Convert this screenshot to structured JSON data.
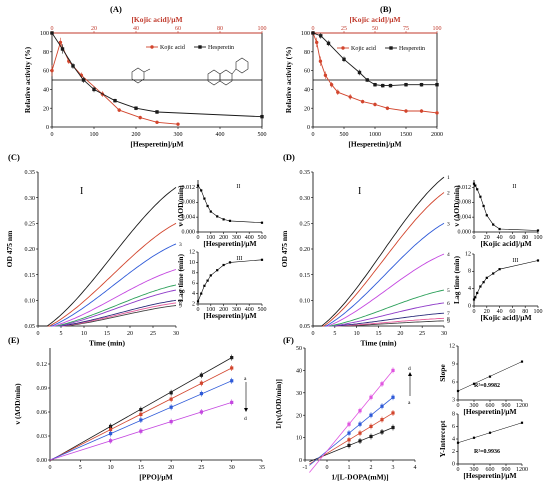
{
  "colors": {
    "kojic": "#d2452d",
    "hesperetin": "#1a1a1a",
    "top_axis": "#c0392b",
    "conc_series": [
      "#1a1a1a",
      "#d2452d",
      "#2e5ad8",
      "#c447e0",
      "#2ca05a",
      "#8e3ac8",
      "#2a2a7a",
      "#e65a9a",
      "#444444"
    ]
  },
  "chart_data": [
    {
      "panel": "(A)",
      "type": "line",
      "xlabel": "[Hesperetin]/μM",
      "x2label": "[Kojic acid]/μM",
      "ylabel": "Relative activity (%)",
      "xlim": [
        0,
        500
      ],
      "x2lim": [
        0,
        100
      ],
      "ylim": [
        0,
        100
      ],
      "xticks": [
        "0",
        "100",
        "200",
        "300",
        "400",
        "500"
      ],
      "x2ticks": [
        "0",
        "20",
        "40",
        "60",
        "80",
        "100"
      ],
      "yticks": [
        "0",
        "20",
        "40",
        "60",
        "80",
        "100"
      ],
      "hline": 50,
      "legend": [
        "Kojic acid",
        "Hesperetin"
      ],
      "series": [
        {
          "name": "Kojic acid",
          "axis": "top",
          "x": [
            0,
            4,
            8,
            14,
            24,
            32,
            42,
            50,
            60
          ],
          "y": [
            60,
            90,
            70,
            55,
            35,
            18,
            10,
            5,
            3
          ],
          "err": [
            6,
            5,
            3,
            3,
            3,
            2,
            2,
            1,
            1
          ]
        },
        {
          "name": "Hesperetin",
          "axis": "bottom",
          "x": [
            0,
            25,
            50,
            75,
            100,
            150,
            200,
            250,
            500
          ],
          "y": [
            100,
            83,
            65,
            50,
            40,
            28,
            20,
            16,
            11
          ],
          "err": [
            0,
            5,
            3,
            3,
            3,
            2,
            2,
            2,
            2
          ]
        }
      ]
    },
    {
      "panel": "(B)",
      "type": "line",
      "xlabel": "[Hesperetin]/μM",
      "x2label": "[Kojic acid]/μM",
      "ylabel": "Relative activity (%)",
      "xlim": [
        0,
        2000
      ],
      "x2lim": [
        0,
        100
      ],
      "ylim": [
        0,
        100
      ],
      "xticks": [
        "0",
        "500",
        "1000",
        "1500",
        "2000"
      ],
      "x2ticks": [
        "0",
        "25",
        "50",
        "75",
        "100"
      ],
      "yticks": [
        "0",
        "20",
        "40",
        "60",
        "80",
        "100"
      ],
      "hline": 50,
      "legend": [
        "Kojic acid",
        "Hesperetin"
      ],
      "series": [
        {
          "name": "Kojic acid",
          "axis": "top",
          "x": [
            0,
            3,
            6,
            10,
            15,
            20,
            30,
            40,
            50,
            60,
            75,
            87.5,
            100
          ],
          "y": [
            100,
            90,
            70,
            55,
            45,
            37,
            32,
            27,
            24,
            20,
            17,
            17,
            15
          ],
          "err": [
            2,
            5,
            5,
            4,
            3,
            3,
            3,
            2,
            2,
            2,
            2,
            2,
            2
          ]
        },
        {
          "name": "Hesperetin",
          "axis": "bottom",
          "x": [
            0,
            125,
            250,
            500,
            750,
            875,
            1000,
            1125,
            1250,
            1500,
            1750,
            2000
          ],
          "y": [
            100,
            97,
            89,
            72,
            58,
            50,
            45,
            44,
            44,
            45,
            45,
            45
          ],
          "err": [
            0,
            3,
            3,
            3,
            3,
            2,
            2,
            2,
            2,
            2,
            2,
            2
          ]
        }
      ]
    },
    {
      "panel": "(C)",
      "type": "line",
      "xlabel": "Time (min)",
      "ylabel": "OD 475 nm",
      "xlim": [
        0,
        30
      ],
      "ylim": [
        0.05,
        0.35
      ],
      "xticks": [
        "0",
        "5",
        "10",
        "15",
        "20",
        "25",
        "30"
      ],
      "yticks": [
        "0.05",
        "0.10",
        "0.15",
        "0.20",
        "0.25",
        "0.30",
        "0.35"
      ],
      "roman": "I",
      "curve_labels": [
        "1",
        "2",
        "3",
        "4",
        "5",
        "6",
        "7",
        "8",
        "9"
      ],
      "final_values": [
        0.32,
        0.25,
        0.21,
        0.16,
        0.13,
        0.12,
        0.1,
        0.095,
        0.09
      ],
      "lag_min": [
        2,
        2.5,
        3,
        3.5,
        4,
        4.5,
        5,
        5.5,
        6
      ]
    },
    {
      "panel": "(C) II",
      "type": "line",
      "xlabel": "[Hesperetin]/μM",
      "ylabel": "v (ΔOD/min)",
      "roman": "II",
      "xlim": [
        0,
        500
      ],
      "ylim": [
        0,
        0.014
      ],
      "xticks": [
        "0",
        "100",
        "200",
        "300",
        "400",
        "500"
      ],
      "yticks": [
        "0.000",
        "0.004",
        "0.008",
        "0.012"
      ],
      "x": [
        0,
        25,
        50,
        75,
        100,
        150,
        200,
        250,
        500
      ],
      "y": [
        0.0125,
        0.0112,
        0.009,
        0.007,
        0.0055,
        0.0042,
        0.0034,
        0.003,
        0.0025
      ]
    },
    {
      "panel": "(C) III",
      "type": "line",
      "xlabel": "[Hesperetin]/μM",
      "ylabel": "Lag time (min)",
      "roman": "III",
      "xlim": [
        0,
        500
      ],
      "ylim": [
        2,
        12
      ],
      "xticks": [
        "0",
        "100",
        "200",
        "300",
        "400",
        "500"
      ],
      "yticks": [
        "2",
        "4",
        "6",
        "8",
        "10",
        "12"
      ],
      "x": [
        0,
        25,
        50,
        75,
        100,
        150,
        200,
        250,
        500
      ],
      "y": [
        2.5,
        4,
        5.5,
        6.5,
        7.5,
        8.5,
        9.5,
        10,
        10.5
      ]
    },
    {
      "panel": "(D)",
      "type": "line",
      "xlabel": "Time (min)",
      "ylabel": "OD 475 nm",
      "xlim": [
        0,
        30
      ],
      "ylim": [
        0.05,
        0.35
      ],
      "xticks": [
        "0",
        "5",
        "10",
        "15",
        "20",
        "25",
        "30"
      ],
      "yticks": [
        "0.05",
        "0.10",
        "0.15",
        "0.20",
        "0.25",
        "0.30",
        "0.35"
      ],
      "roman": "I",
      "curve_labels": [
        "1",
        "2",
        "3",
        "4",
        "5",
        "6",
        "7",
        "8",
        "9"
      ],
      "final_values": [
        0.34,
        0.31,
        0.25,
        0.19,
        0.12,
        0.095,
        0.075,
        0.065,
        0.06
      ],
      "lag_min": [
        2,
        2.5,
        3,
        3.5,
        4,
        4.5,
        5,
        5.5,
        6
      ]
    },
    {
      "panel": "(D) II",
      "type": "line",
      "xlabel": "[Kojic acid]/μM",
      "ylabel": "v (ΔOD/min)",
      "roman": "II",
      "xlim": [
        0,
        100
      ],
      "ylim": [
        0,
        0.014
      ],
      "xticks": [
        "0",
        "20",
        "40",
        "60",
        "80",
        "100"
      ],
      "yticks": [
        "0.000",
        "0.004",
        "0.008",
        "0.012"
      ],
      "x": [
        0,
        2,
        5,
        10,
        15,
        20,
        30,
        40,
        100
      ],
      "y": [
        0.013,
        0.0125,
        0.0115,
        0.0095,
        0.007,
        0.0045,
        0.002,
        0.0008,
        0.0004
      ]
    },
    {
      "panel": "(D) III",
      "type": "line",
      "xlabel": "[Kojic acid]/μM",
      "ylabel": "Lag time (min)",
      "roman": "III",
      "xlim": [
        0,
        100
      ],
      "ylim": [
        0,
        12
      ],
      "xticks": [
        "0",
        "20",
        "40",
        "60",
        "80",
        "100"
      ],
      "yticks": [
        "0",
        "4",
        "8",
        "12"
      ],
      "x": [
        0,
        2,
        5,
        10,
        15,
        20,
        30,
        40,
        100
      ],
      "y": [
        1.5,
        2,
        3,
        4.5,
        5.5,
        6.5,
        7.5,
        8.5,
        10.5
      ]
    },
    {
      "panel": "(E)",
      "type": "line",
      "xlabel": "[PPO]/μM",
      "ylabel": "v (ΔOD/min)",
      "xlim": [
        0,
        35
      ],
      "ylim": [
        0,
        0.14
      ],
      "xticks": [
        "0",
        "5",
        "10",
        "15",
        "20",
        "25",
        "30",
        "35"
      ],
      "yticks": [
        "0.00",
        "0.03",
        "0.06",
        "0.09",
        "0.12"
      ],
      "arrow_labels": [
        "a",
        "d"
      ],
      "x": [
        10,
        15,
        20,
        25,
        30
      ],
      "series": [
        {
          "y": [
            0.042,
            0.063,
            0.084,
            0.106,
            0.128
          ]
        },
        {
          "y": [
            0.038,
            0.057,
            0.076,
            0.096,
            0.115
          ]
        },
        {
          "y": [
            0.033,
            0.05,
            0.066,
            0.083,
            0.099
          ]
        },
        {
          "y": [
            0.024,
            0.036,
            0.048,
            0.06,
            0.072
          ]
        }
      ]
    },
    {
      "panel": "(F)",
      "type": "line",
      "xlabel": "1/[L-DOPA(mM)]",
      "ylabel": "1/[v(ΔOD/min)]",
      "xlim": [
        -1,
        4
      ],
      "ylim": [
        0,
        50
      ],
      "xticks": [
        "-1",
        "0",
        "1",
        "2",
        "3",
        "4"
      ],
      "yticks": [
        "0",
        "10",
        "20",
        "30",
        "40",
        "50"
      ],
      "arrow_labels": [
        "d",
        "a"
      ],
      "x": [
        1,
        1.5,
        2,
        2.5,
        3
      ],
      "series": [
        {
          "y": [
            6.5,
            8.5,
            10.5,
            12.5,
            14.5
          ]
        },
        {
          "y": [
            9,
            12,
            15,
            18,
            21
          ]
        },
        {
          "y": [
            12,
            16,
            20,
            24,
            28
          ]
        },
        {
          "y": [
            16,
            22,
            28,
            34,
            40
          ]
        }
      ]
    },
    {
      "panel": "(F) slope",
      "type": "scatter",
      "xlabel": "[Hesperetin]/μM",
      "ylabel": "Slope",
      "annotation": "R²=0.9982",
      "xlim": [
        0,
        1200
      ],
      "ylim": [
        3,
        12
      ],
      "xticks": [
        "0",
        "300",
        "600",
        "900",
        "1200"
      ],
      "yticks": [
        "3",
        "6",
        "9",
        "12"
      ],
      "x": [
        0,
        300,
        600,
        1200
      ],
      "y": [
        4.5,
        5.7,
        6.9,
        9.4
      ]
    },
    {
      "panel": "(F) intercept",
      "type": "scatter",
      "xlabel": "[Hesperetin]/μM",
      "ylabel": "Y-Intercept",
      "annotation": "R²=0.9936",
      "xlim": [
        0,
        1200
      ],
      "ylim": [
        0,
        8
      ],
      "xticks": [
        "0",
        "300",
        "600",
        "900",
        "1200"
      ],
      "yticks": [
        "0",
        "2",
        "4",
        "6",
        "8"
      ],
      "x": [
        0,
        300,
        600,
        1200
      ],
      "y": [
        3.4,
        4.2,
        5.0,
        6.6
      ]
    }
  ]
}
